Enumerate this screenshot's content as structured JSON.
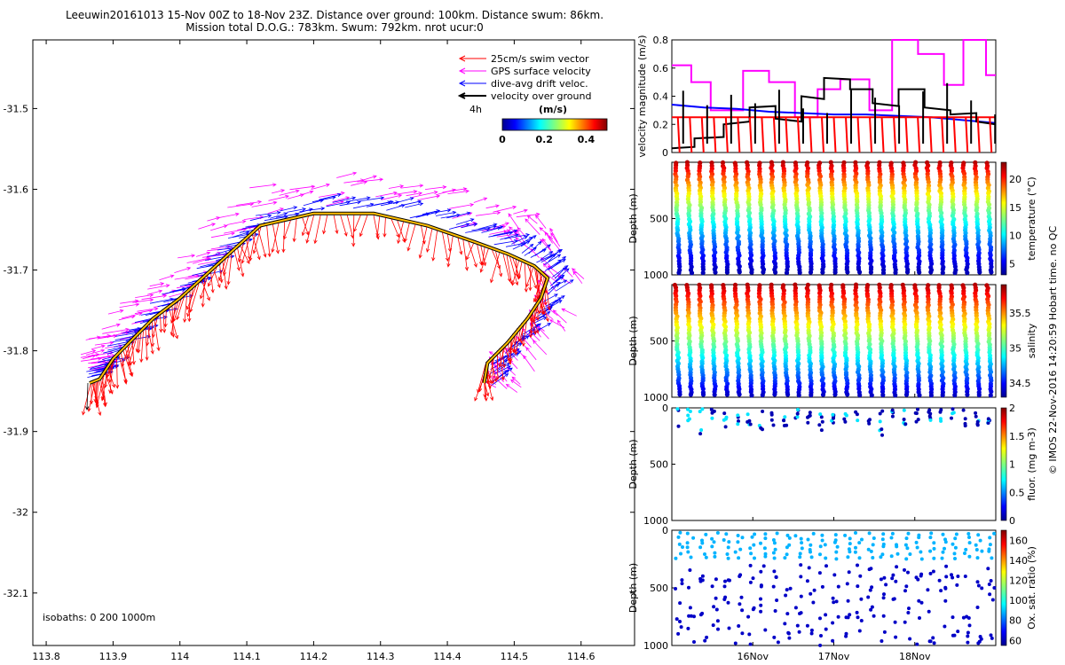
{
  "title": {
    "line1": "Leeuwin20161013 15-Nov 00Z to 18-Nov 23Z. Distance over ground: 100km. Distance swum: 86km.",
    "line2": "Mission total D.O.G.: 783km. Swum: 792km. nrot ucur:0"
  },
  "watermark": "© IMOS 22-Nov-2016 14:20:59 Hobart time. no QC",
  "colors": {
    "swim": "#ff0000",
    "gps": "#ff00ff",
    "drift": "#0000ff",
    "ground": "#000000"
  },
  "chart_data": [
    {
      "type": "vector_map",
      "x_ticks": [
        "113.8",
        "113.9",
        "114",
        "114.1",
        "114.2",
        "114.3",
        "114.4",
        "114.5",
        "114.6"
      ],
      "y_ticks": [
        "-31.5",
        "-31.6",
        "-31.7",
        "-31.8",
        "-31.9",
        "-32",
        "-32.1"
      ],
      "xlim": [
        113.78,
        114.68
      ],
      "ylim": [
        -32.165,
        -31.415
      ],
      "legend": {
        "placement": "top-right",
        "entries": [
          "25cm/s swim vector",
          "GPS surface velocity",
          "dive-avg drift veloc.",
          "velocity over ground"
        ],
        "time_label": "4h"
      },
      "colorbar": {
        "label": "(m/s)",
        "ticks": [
          "0",
          "0.2",
          "0.4"
        ],
        "range": [
          0,
          0.5
        ]
      },
      "isobaths_label": "isobaths: 0   200  1000m",
      "track": {
        "lon": [
          113.865,
          113.88,
          113.9,
          113.93,
          113.96,
          114.0,
          114.04,
          114.08,
          114.12,
          114.2,
          114.29,
          114.37,
          114.44,
          114.49,
          114.53,
          114.55,
          114.54,
          114.52,
          114.49,
          114.46,
          114.455
        ],
        "lat": [
          -31.84,
          -31.835,
          -31.81,
          -31.785,
          -31.76,
          -31.735,
          -31.705,
          -31.675,
          -31.645,
          -31.63,
          -31.63,
          -31.645,
          -31.665,
          -31.68,
          -31.695,
          -31.71,
          -31.735,
          -31.76,
          -31.79,
          -31.815,
          -31.84
        ]
      }
    },
    {
      "type": "line",
      "ylabel": "velocity magnitude (m/s)",
      "ylim": [
        0,
        0.8
      ],
      "y_ticks": [
        "0",
        "0.2",
        "0.4",
        "0.6",
        "0.8"
      ],
      "series": [
        {
          "color": "#ff00ff",
          "x": [
            0,
            0.06,
            0.06,
            0.12,
            0.12,
            0.22,
            0.22,
            0.3,
            0.3,
            0.38,
            0.38,
            0.45,
            0.45,
            0.52,
            0.52,
            0.61,
            0.61,
            0.68,
            0.68,
            0.76,
            0.76,
            0.84,
            0.84,
            0.9,
            0.9,
            0.97,
            0.97,
            1.0
          ],
          "values": [
            0.62,
            0.62,
            0.5,
            0.5,
            0.3,
            0.3,
            0.58,
            0.58,
            0.5,
            0.5,
            0.25,
            0.25,
            0.45,
            0.45,
            0.52,
            0.52,
            0.3,
            0.3,
            0.8,
            0.8,
            0.7,
            0.7,
            0.48,
            0.48,
            0.8,
            0.8,
            0.55,
            0.55
          ]
        },
        {
          "color": "#0000ff",
          "x": [
            0,
            0.1,
            0.2,
            0.3,
            0.4,
            0.5,
            0.6,
            0.7,
            0.8,
            0.9,
            1.0
          ],
          "values": [
            0.34,
            0.32,
            0.31,
            0.29,
            0.28,
            0.27,
            0.27,
            0.26,
            0.25,
            0.23,
            0.21
          ]
        },
        {
          "color": "#ff0000",
          "x": [
            0,
            1.0
          ],
          "values": [
            0.25,
            0.25
          ]
        },
        {
          "color": "#000000",
          "x": [
            0,
            0.07,
            0.07,
            0.16,
            0.16,
            0.24,
            0.24,
            0.32,
            0.32,
            0.4,
            0.4,
            0.47,
            0.47,
            0.55,
            0.55,
            0.62,
            0.62,
            0.7,
            0.7,
            0.78,
            0.78,
            0.86,
            0.86,
            0.94,
            0.94,
            1.0
          ],
          "values": [
            0.03,
            0.04,
            0.1,
            0.11,
            0.2,
            0.22,
            0.32,
            0.33,
            0.24,
            0.22,
            0.4,
            0.38,
            0.53,
            0.52,
            0.45,
            0.45,
            0.35,
            0.33,
            0.45,
            0.45,
            0.32,
            0.3,
            0.27,
            0.28,
            0.22,
            0.2
          ]
        }
      ]
    },
    {
      "type": "scatter",
      "ylabel": "Depth (m)",
      "colorbar_label": "temperature (°C)",
      "y_ticks": [
        "500",
        "1000"
      ],
      "ylim": [
        0,
        1000
      ],
      "colorbar_ticks": [
        "5",
        "10",
        "15",
        "20"
      ],
      "crange": [
        3,
        23
      ],
      "profile": "temperature"
    },
    {
      "type": "scatter",
      "ylabel": "Depth (m)",
      "colorbar_label": "salinity",
      "y_ticks": [
        "500",
        "1000"
      ],
      "ylim": [
        0,
        1000
      ],
      "colorbar_ticks": [
        "34.5",
        "35",
        "35.5"
      ],
      "crange": [
        34.3,
        35.9
      ],
      "profile": "salinity"
    },
    {
      "type": "scatter",
      "ylabel": "Depth (m)",
      "colorbar_label": "fluor. (mg m-3)",
      "y_ticks": [
        "0",
        "500",
        "1000"
      ],
      "ylim": [
        0,
        1000
      ],
      "colorbar_ticks": [
        "0",
        "0.5",
        "1",
        "1.5",
        "2"
      ],
      "crange": [
        0,
        2
      ],
      "profile": "fluor"
    },
    {
      "type": "scatter",
      "ylabel": "Depth (m)",
      "colorbar_label": "Ox. sat. ratio (%)",
      "y_ticks": [
        "0",
        "500",
        "1000"
      ],
      "ylim": [
        0,
        1000
      ],
      "colorbar_ticks": [
        "60",
        "80",
        "100",
        "120",
        "140",
        "160"
      ],
      "crange": [
        55,
        170
      ],
      "profile": "oxygen",
      "x_ticks": [
        "16Nov",
        "17Nov",
        "18Nov"
      ]
    }
  ]
}
